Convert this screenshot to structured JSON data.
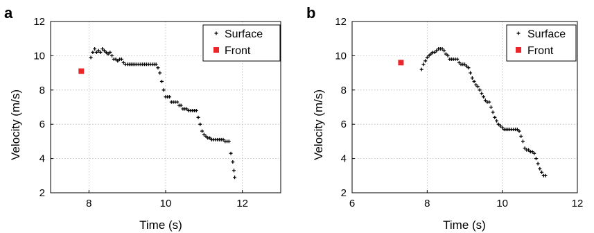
{
  "chart_data": [
    {
      "panel": "a",
      "type": "scatter",
      "xlabel": "Time (s)",
      "ylabel": "Velocity (m/s)",
      "xlim": [
        7,
        13
      ],
      "ylim": [
        2,
        12
      ],
      "xticks": [
        8,
        10,
        12
      ],
      "yticks": [
        2,
        4,
        6,
        8,
        10,
        12
      ],
      "grid": true,
      "legend_position": "top-right",
      "series": [
        {
          "name": "Surface",
          "marker": "plus",
          "color": "#000000",
          "x": [
            8.05,
            8.1,
            8.15,
            8.2,
            8.25,
            8.3,
            8.35,
            8.4,
            8.45,
            8.5,
            8.55,
            8.6,
            8.65,
            8.7,
            8.75,
            8.8,
            8.85,
            8.9,
            8.95,
            9.0,
            9.05,
            9.1,
            9.15,
            9.2,
            9.25,
            9.3,
            9.35,
            9.4,
            9.45,
            9.5,
            9.55,
            9.6,
            9.65,
            9.7,
            9.75,
            9.8,
            9.85,
            9.9,
            9.95,
            10.0,
            10.05,
            10.1,
            10.15,
            10.2,
            10.25,
            10.3,
            10.35,
            10.4,
            10.45,
            10.5,
            10.55,
            10.6,
            10.65,
            10.7,
            10.75,
            10.8,
            10.85,
            10.9,
            10.95,
            11.0,
            11.05,
            11.1,
            11.15,
            11.2,
            11.25,
            11.3,
            11.35,
            11.4,
            11.45,
            11.5,
            11.55,
            11.6,
            11.65,
            11.7,
            11.75,
            11.78,
            11.8
          ],
          "y": [
            9.9,
            10.2,
            10.4,
            10.2,
            10.3,
            10.2,
            10.4,
            10.3,
            10.2,
            10.1,
            10.2,
            10.0,
            9.8,
            9.8,
            9.7,
            9.8,
            9.8,
            9.6,
            9.5,
            9.5,
            9.5,
            9.5,
            9.5,
            9.5,
            9.5,
            9.5,
            9.5,
            9.5,
            9.5,
            9.5,
            9.5,
            9.5,
            9.5,
            9.5,
            9.5,
            9.3,
            9.0,
            8.5,
            8.0,
            7.6,
            7.6,
            7.6,
            7.3,
            7.3,
            7.3,
            7.3,
            7.1,
            7.1,
            6.9,
            6.9,
            6.9,
            6.8,
            6.8,
            6.8,
            6.8,
            6.8,
            6.4,
            6.0,
            5.6,
            5.4,
            5.3,
            5.2,
            5.2,
            5.1,
            5.1,
            5.1,
            5.1,
            5.1,
            5.1,
            5.1,
            5.0,
            5.0,
            5.0,
            4.3,
            3.8,
            3.3,
            2.9
          ]
        },
        {
          "name": "Front",
          "marker": "square",
          "color": "#e8262c",
          "x": [
            7.8
          ],
          "y": [
            9.1
          ]
        }
      ]
    },
    {
      "panel": "b",
      "type": "scatter",
      "xlabel": "Time (s)",
      "ylabel": "Velocity (m/s)",
      "xlim": [
        6,
        12
      ],
      "ylim": [
        2,
        12
      ],
      "xticks": [
        6,
        8,
        10,
        12
      ],
      "yticks": [
        2,
        4,
        6,
        8,
        10,
        12
      ],
      "grid": true,
      "legend_position": "top-right",
      "series": [
        {
          "name": "Surface",
          "marker": "plus",
          "color": "#000000",
          "x": [
            7.85,
            7.9,
            7.95,
            8.0,
            8.05,
            8.1,
            8.15,
            8.2,
            8.25,
            8.3,
            8.35,
            8.4,
            8.45,
            8.5,
            8.55,
            8.6,
            8.65,
            8.7,
            8.75,
            8.8,
            8.85,
            8.9,
            8.95,
            9.0,
            9.05,
            9.1,
            9.15,
            9.2,
            9.25,
            9.3,
            9.35,
            9.4,
            9.45,
            9.5,
            9.55,
            9.6,
            9.65,
            9.7,
            9.75,
            9.8,
            9.85,
            9.9,
            9.95,
            10.0,
            10.05,
            10.1,
            10.15,
            10.2,
            10.25,
            10.3,
            10.35,
            10.4,
            10.45,
            10.5,
            10.55,
            10.6,
            10.65,
            10.7,
            10.75,
            10.8,
            10.85,
            10.9,
            10.95,
            11.0,
            11.05,
            11.1,
            11.15
          ],
          "y": [
            9.2,
            9.5,
            9.7,
            9.9,
            10.0,
            10.1,
            10.2,
            10.2,
            10.3,
            10.4,
            10.4,
            10.4,
            10.3,
            10.1,
            10.0,
            9.8,
            9.8,
            9.8,
            9.8,
            9.8,
            9.6,
            9.5,
            9.5,
            9.5,
            9.4,
            9.3,
            9.0,
            8.7,
            8.5,
            8.3,
            8.2,
            8.0,
            7.8,
            7.6,
            7.4,
            7.3,
            7.3,
            7.0,
            6.7,
            6.4,
            6.2,
            6.0,
            5.9,
            5.8,
            5.7,
            5.7,
            5.7,
            5.7,
            5.7,
            5.7,
            5.7,
            5.7,
            5.6,
            5.3,
            5.0,
            4.6,
            4.5,
            4.5,
            4.4,
            4.4,
            4.3,
            4.0,
            3.7,
            3.4,
            3.2,
            3.0,
            3.0
          ]
        },
        {
          "name": "Front",
          "marker": "square",
          "color": "#e8262c",
          "x": [
            7.3
          ],
          "y": [
            9.6
          ]
        }
      ]
    }
  ]
}
